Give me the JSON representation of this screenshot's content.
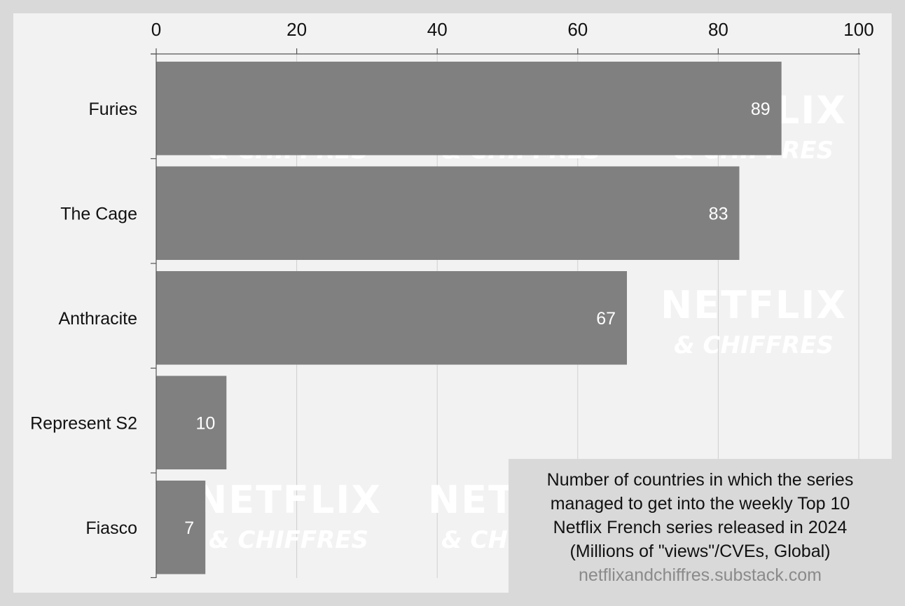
{
  "chart_data": {
    "type": "bar",
    "orientation": "horizontal",
    "categories": [
      "Furies",
      "The Cage",
      "Anthracite",
      "Represent S2",
      "Fiasco"
    ],
    "values": [
      89,
      83,
      67,
      10,
      7
    ],
    "data_labels": [
      "89",
      "83",
      "67",
      "10",
      "7"
    ],
    "xlim": [
      0,
      100
    ],
    "x_ticks": [
      "0",
      "20",
      "40",
      "60",
      "80",
      "100"
    ],
    "x_axis_position": "top",
    "grid": true,
    "legend": "none",
    "bar_color": "#808080",
    "label_color": "#ffffff",
    "watermark_color": "#ffffff",
    "caption": {
      "lines": [
        "Number of countries in which the series",
        "managed to get into the weekly Top 10",
        "Netflix French series released in 2024",
        "(Millions of \"views\"/CVEs, Global)"
      ],
      "source": "netflixandchiffres.substack.com"
    },
    "watermark": {
      "line1": "NETFLIX",
      "line2": "& CHIFFRES"
    }
  }
}
